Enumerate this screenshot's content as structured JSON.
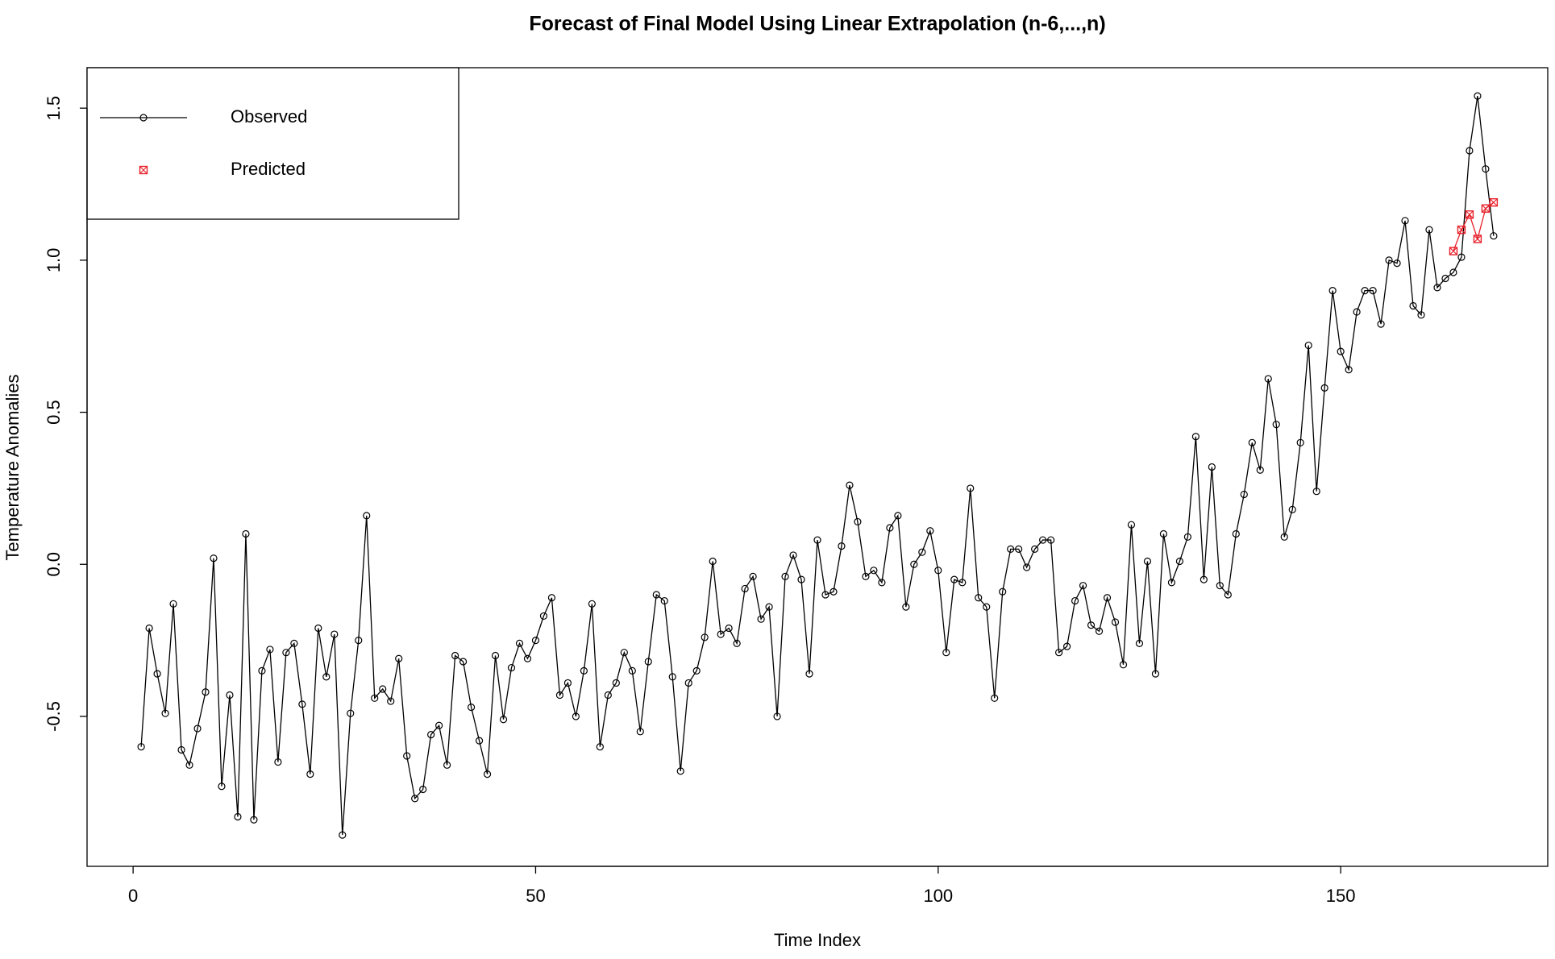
{
  "chart_data": {
    "type": "line",
    "title": "Forecast of Final Model Using Linear Extrapolation (n-6,...,n)",
    "x_label": "Time Index",
    "y_label": "Temperature Anomalies",
    "xlim": [
      -5.72,
      175.72
    ],
    "ylim": [
      -0.993,
      1.633
    ],
    "xticks": [
      0,
      50,
      100,
      150
    ],
    "yticks": [
      -0.5,
      {
        "value": 0,
        "label": "0.0"
      },
      0.5,
      {
        "value": 1,
        "label": "1.0"
      },
      1.5
    ],
    "legend": "top-left",
    "series": [
      {
        "name": "Observed",
        "color": "#000000",
        "marker": "circle",
        "x": [
          1,
          2,
          3,
          4,
          5,
          6,
          7,
          8,
          9,
          10,
          11,
          12,
          13,
          14,
          15,
          16,
          17,
          18,
          19,
          20,
          21,
          22,
          23,
          24,
          25,
          26,
          27,
          28,
          29,
          30,
          31,
          32,
          33,
          34,
          35,
          36,
          37,
          38,
          39,
          40,
          41,
          42,
          43,
          44,
          45,
          46,
          47,
          48,
          49,
          50,
          51,
          52,
          53,
          54,
          55,
          56,
          57,
          58,
          59,
          60,
          61,
          62,
          63,
          64,
          65,
          66,
          67,
          68,
          69,
          70,
          71,
          72,
          73,
          74,
          75,
          76,
          77,
          78,
          79,
          80,
          81,
          82,
          83,
          84,
          85,
          86,
          87,
          88,
          89,
          90,
          91,
          92,
          93,
          94,
          95,
          96,
          97,
          98,
          99,
          100,
          101,
          102,
          103,
          104,
          105,
          106,
          107,
          108,
          109,
          110,
          111,
          112,
          113,
          114,
          115,
          116,
          117,
          118,
          119,
          120,
          121,
          122,
          123,
          124,
          125,
          126,
          127,
          128,
          129,
          130,
          131,
          132,
          133,
          134,
          135,
          136,
          137,
          138,
          139,
          140,
          141,
          142,
          143,
          144,
          145,
          146,
          147,
          148,
          149,
          150,
          151,
          152,
          153,
          154,
          155,
          156,
          157,
          158,
          159,
          160,
          161,
          162,
          163,
          164,
          165,
          166,
          167,
          168,
          169
        ],
        "values": [
          -0.6,
          -0.21,
          -0.36,
          -0.49,
          -0.13,
          -0.61,
          -0.66,
          -0.54,
          -0.42,
          0.02,
          -0.73,
          -0.43,
          -0.83,
          0.1,
          -0.84,
          -0.35,
          -0.28,
          -0.65,
          -0.29,
          -0.26,
          -0.46,
          -0.69,
          -0.21,
          -0.37,
          -0.23,
          -0.89,
          -0.49,
          -0.25,
          0.16,
          -0.44,
          -0.41,
          -0.45,
          -0.31,
          -0.63,
          -0.77,
          -0.74,
          -0.56,
          -0.53,
          -0.66,
          -0.3,
          -0.32,
          -0.47,
          -0.58,
          -0.69,
          -0.3,
          -0.51,
          -0.34,
          -0.26,
          -0.31,
          -0.25,
          -0.17,
          -0.11,
          -0.43,
          -0.39,
          -0.5,
          -0.35,
          -0.13,
          -0.6,
          -0.43,
          -0.39,
          -0.29,
          -0.35,
          -0.55,
          -0.32,
          -0.1,
          -0.12,
          -0.37,
          -0.68,
          -0.39,
          -0.35,
          -0.24,
          0.01,
          -0.23,
          -0.21,
          -0.26,
          -0.08,
          -0.04,
          -0.18,
          -0.14,
          -0.5,
          -0.04,
          0.03,
          -0.05,
          -0.36,
          0.08,
          -0.1,
          -0.09,
          0.06,
          0.26,
          0.14,
          -0.04,
          -0.02,
          -0.06,
          0.12,
          0.16,
          -0.14,
          0.0,
          0.04,
          0.11,
          -0.02,
          -0.29,
          -0.05,
          -0.06,
          0.25,
          -0.11,
          -0.14,
          -0.44,
          -0.09,
          0.05,
          0.05,
          -0.01,
          0.05,
          0.08,
          0.08,
          -0.29,
          -0.27,
          -0.12,
          -0.07,
          -0.2,
          -0.22,
          -0.11,
          -0.19,
          -0.33,
          0.13,
          -0.26,
          0.01,
          -0.36,
          0.1,
          -0.06,
          0.01,
          0.09,
          0.42,
          -0.05,
          0.32,
          -0.07,
          -0.1,
          0.1,
          0.23,
          0.4,
          0.31,
          0.61,
          0.46,
          0.09,
          0.18,
          0.4,
          0.72,
          0.24,
          0.58,
          0.9,
          0.7,
          0.64,
          0.83,
          0.9,
          0.9,
          0.79,
          1.0,
          0.99,
          1.13,
          0.85,
          0.82,
          1.1,
          0.91,
          0.94,
          0.96,
          1.01,
          1.36,
          1.54,
          1.3,
          1.08
        ]
      },
      {
        "name": "Predicted",
        "color": "#e8202a",
        "marker": "square-x",
        "x": [
          164,
          165,
          166,
          167,
          168,
          169
        ],
        "values": [
          1.03,
          1.1,
          1.15,
          1.07,
          1.17,
          1.19
        ]
      }
    ]
  }
}
